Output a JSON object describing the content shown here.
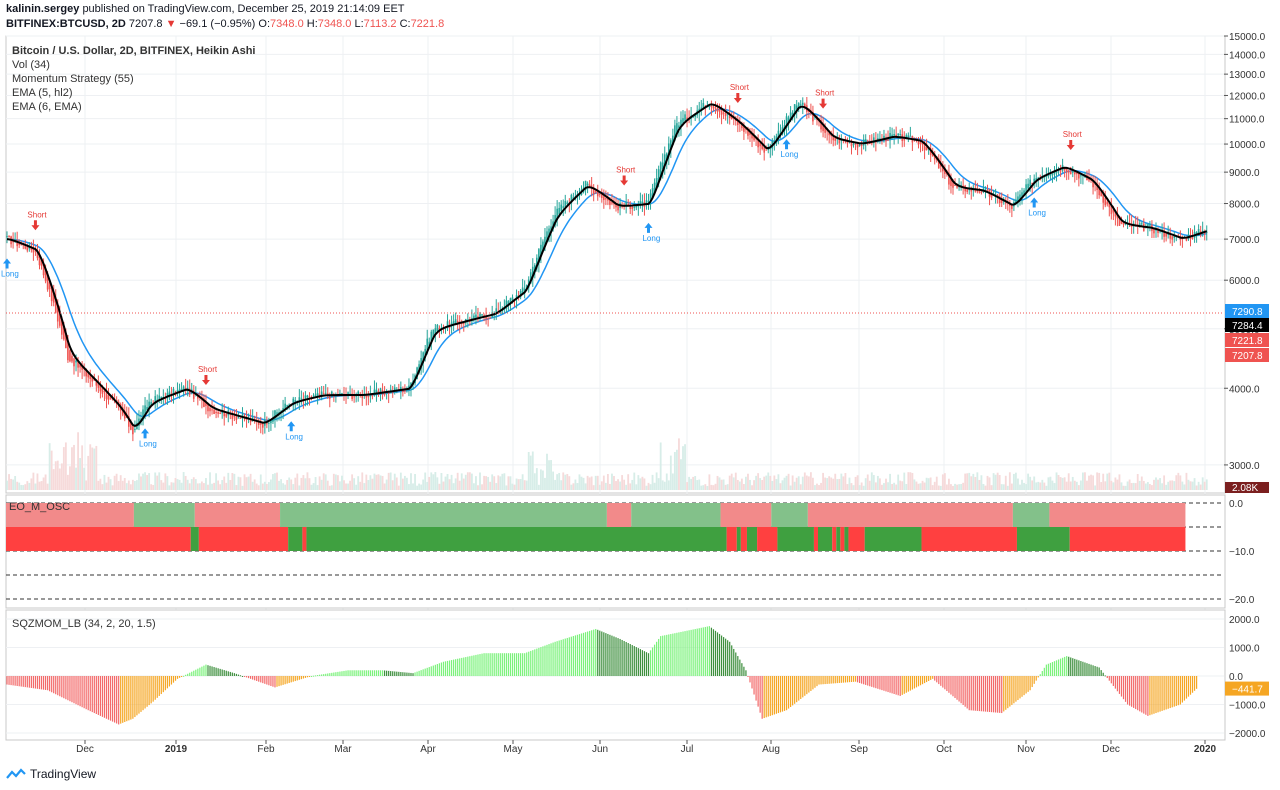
{
  "header": {
    "author": "kalinin.sergey",
    "published_text": "published on TradingView.com, December 25, 2019 21:14:09 EET",
    "symbol": "BITFINEX:BTCUSD, 2D",
    "last": "7207.8",
    "change": "−69.1 (−0.95%)",
    "o_label": "O:",
    "o_value": "7348.0",
    "h_label": "H:",
    "h_value": "7348.0",
    "l_label": "L:",
    "l_value": "7113.2",
    "c_label": "C:",
    "c_value": "7221.8"
  },
  "legend": {
    "title": "Bitcoin / U.S. Dollar, 2D, BITFINEX, Heikin Ashi",
    "vol": "Vol (34)",
    "momentum": "Momentum Strategy (55)",
    "ema1": "EMA (5, hl2)",
    "ema2": "EMA (6, EMA)",
    "osc": "EO_M_OSC",
    "sqz": "SQZMOM_LB (34, 2, 20, 1.5)"
  },
  "footer": {
    "brand": "TradingView"
  },
  "colors": {
    "up": "#26a69a",
    "down": "#ef5350",
    "ema_fast": "#000000",
    "ema_slow": "#2196f3",
    "long": "#2196f3",
    "short": "#e53935"
  },
  "chart_data": [
    {
      "type": "candlestick",
      "title": "Bitcoin / U.S. Dollar, 2D, BITFINEX, Heikin Ashi",
      "x_ticks": [
        "Dec",
        "2019",
        "Feb",
        "Mar",
        "Apr",
        "May",
        "Jun",
        "Jul",
        "Aug",
        "Sep",
        "Oct",
        "Nov",
        "Dec",
        "2020"
      ],
      "y_ticks": [
        3000,
        4000,
        5000,
        6000,
        7000,
        8000,
        9000,
        10000,
        11000,
        12000,
        13000,
        14000,
        15000
      ],
      "y_tick_labels": [
        "3000.0",
        "4000.0",
        "5000.0",
        "6000.0",
        "7000.0",
        "8000.0",
        "9000.0",
        "10000.0",
        "11000.0",
        "12000.0",
        "13000.0",
        "14000.0",
        "15000.0"
      ],
      "y_scale": "log",
      "price_labels": [
        {
          "text": "7290.8",
          "value": 7290.8,
          "color": "#2196f3"
        },
        {
          "text": "7284.4",
          "value": 7284.4,
          "color": "#000000"
        },
        {
          "text": "7221.8",
          "value": 7221.8,
          "color": "#ef5350"
        },
        {
          "text": "7207.8",
          "value": 7207.8,
          "color": "#ef5350"
        }
      ],
      "volume_label": "2.08K",
      "key_points": [
        {
          "x": 0,
          "y": 7000
        },
        {
          "x": 14,
          "y": 6700
        },
        {
          "x": 30,
          "y": 4500
        },
        {
          "x": 55,
          "y": 3700
        },
        {
          "x": 62,
          "y": 3400
        },
        {
          "x": 70,
          "y": 3800
        },
        {
          "x": 88,
          "y": 4000
        },
        {
          "x": 100,
          "y": 3700
        },
        {
          "x": 126,
          "y": 3500
        },
        {
          "x": 140,
          "y": 3800
        },
        {
          "x": 155,
          "y": 3900
        },
        {
          "x": 175,
          "y": 3900
        },
        {
          "x": 198,
          "y": 4000
        },
        {
          "x": 210,
          "y": 5000
        },
        {
          "x": 240,
          "y": 5300
        },
        {
          "x": 255,
          "y": 5800
        },
        {
          "x": 270,
          "y": 7700
        },
        {
          "x": 285,
          "y": 8600
        },
        {
          "x": 300,
          "y": 7900
        },
        {
          "x": 316,
          "y": 8000
        },
        {
          "x": 330,
          "y": 10800
        },
        {
          "x": 346,
          "y": 11700
        },
        {
          "x": 360,
          "y": 10800
        },
        {
          "x": 374,
          "y": 9700
        },
        {
          "x": 390,
          "y": 11700
        },
        {
          "x": 406,
          "y": 10200
        },
        {
          "x": 420,
          "y": 10000
        },
        {
          "x": 436,
          "y": 10300
        },
        {
          "x": 450,
          "y": 10100
        },
        {
          "x": 466,
          "y": 8500
        },
        {
          "x": 480,
          "y": 8400
        },
        {
          "x": 495,
          "y": 7900
        },
        {
          "x": 506,
          "y": 8800
        },
        {
          "x": 520,
          "y": 9200
        },
        {
          "x": 534,
          "y": 8700
        },
        {
          "x": 548,
          "y": 7400
        },
        {
          "x": 563,
          "y": 7300
        },
        {
          "x": 578,
          "y": 7000
        },
        {
          "x": 591,
          "y": 7250
        }
      ],
      "signals": [
        {
          "label": "Long",
          "type": "long",
          "x": 0
        },
        {
          "label": "Short",
          "type": "short",
          "x": 14
        },
        {
          "label": "Long",
          "type": "long",
          "x": 68
        },
        {
          "label": "Short",
          "type": "short",
          "x": 98
        },
        {
          "label": "Long",
          "type": "long",
          "x": 140
        },
        {
          "label": "Short",
          "type": "short",
          "x": 304
        },
        {
          "label": "Long",
          "type": "long",
          "x": 316
        },
        {
          "label": "Short",
          "type": "short",
          "x": 360
        },
        {
          "label": "Long",
          "type": "long",
          "x": 384
        },
        {
          "label": "Short",
          "type": "short",
          "x": 402
        },
        {
          "label": "Long",
          "type": "long",
          "x": 506
        },
        {
          "label": "Short",
          "type": "short",
          "x": 524
        }
      ]
    },
    {
      "type": "bar",
      "title": "EO_M_OSC",
      "y_ticks": [
        0,
        -5,
        -10,
        -15,
        -20
      ],
      "y_tick_labels": [
        "0.0",
        "",
        "−10.0",
        "",
        "−20.0"
      ],
      "upper_segments": [
        {
          "from": 0,
          "to": 63,
          "color": "#f28a8a"
        },
        {
          "from": 63,
          "to": 93,
          "color": "#83c18a"
        },
        {
          "from": 93,
          "to": 135,
          "color": "#f28a8a"
        },
        {
          "from": 135,
          "to": 296,
          "color": "#83c18a"
        },
        {
          "from": 296,
          "to": 308,
          "color": "#f28a8a"
        },
        {
          "from": 308,
          "to": 352,
          "color": "#83c18a"
        },
        {
          "from": 352,
          "to": 377,
          "color": "#f28a8a"
        },
        {
          "from": 377,
          "to": 395,
          "color": "#83c18a"
        },
        {
          "from": 395,
          "to": 496,
          "color": "#f28a8a"
        },
        {
          "from": 496,
          "to": 514,
          "color": "#83c18a"
        },
        {
          "from": 514,
          "to": 581,
          "color": "#f28a8a"
        }
      ],
      "lower_segments": [
        {
          "from": 0,
          "to": 91,
          "color": "#ff4040"
        },
        {
          "from": 91,
          "to": 95,
          "color": "#3fa040"
        },
        {
          "from": 95,
          "to": 139,
          "color": "#ff4040"
        },
        {
          "from": 139,
          "to": 146,
          "color": "#3fa040"
        },
        {
          "from": 146,
          "to": 148,
          "color": "#ff4040"
        },
        {
          "from": 148,
          "to": 355,
          "color": "#3fa040"
        },
        {
          "from": 355,
          "to": 360,
          "color": "#ff4040"
        },
        {
          "from": 360,
          "to": 362,
          "color": "#3fa040"
        },
        {
          "from": 362,
          "to": 365,
          "color": "#ff4040"
        },
        {
          "from": 365,
          "to": 370,
          "color": "#3fa040"
        },
        {
          "from": 370,
          "to": 380,
          "color": "#ff4040"
        },
        {
          "from": 380,
          "to": 398,
          "color": "#3fa040"
        },
        {
          "from": 398,
          "to": 400,
          "color": "#ff4040"
        },
        {
          "from": 400,
          "to": 407,
          "color": "#3fa040"
        },
        {
          "from": 407,
          "to": 409,
          "color": "#ff4040"
        },
        {
          "from": 409,
          "to": 411,
          "color": "#3fa040"
        },
        {
          "from": 411,
          "to": 413,
          "color": "#ff4040"
        },
        {
          "from": 413,
          "to": 415,
          "color": "#3fa040"
        },
        {
          "from": 415,
          "to": 423,
          "color": "#ff4040"
        },
        {
          "from": 423,
          "to": 451,
          "color": "#3fa040"
        },
        {
          "from": 451,
          "to": 498,
          "color": "#ff4040"
        },
        {
          "from": 498,
          "to": 524,
          "color": "#3fa040"
        },
        {
          "from": 524,
          "to": 581,
          "color": "#ff4040"
        }
      ]
    },
    {
      "type": "bar",
      "title": "SQZMOM_LB (34, 2, 20, 1.5)",
      "y_ticks": [
        2000,
        1000,
        0,
        -1000,
        -2000
      ],
      "y_tick_labels": [
        "2000.0",
        "1000.0",
        "0.0",
        "−1000.0",
        "−2000.0"
      ],
      "last_value_label": "−441.7",
      "key_points": [
        {
          "x": 0,
          "y": -300
        },
        {
          "x": 20,
          "y": -500
        },
        {
          "x": 40,
          "y": -1200
        },
        {
          "x": 55,
          "y": -1700
        },
        {
          "x": 62,
          "y": -1500
        },
        {
          "x": 72,
          "y": -900
        },
        {
          "x": 84,
          "y": -100
        },
        {
          "x": 98,
          "y": 400
        },
        {
          "x": 112,
          "y": 100
        },
        {
          "x": 132,
          "y": -400
        },
        {
          "x": 150,
          "y": 0
        },
        {
          "x": 168,
          "y": 200
        },
        {
          "x": 185,
          "y": 200
        },
        {
          "x": 200,
          "y": 100
        },
        {
          "x": 215,
          "y": 500
        },
        {
          "x": 235,
          "y": 800
        },
        {
          "x": 255,
          "y": 800
        },
        {
          "x": 270,
          "y": 1200
        },
        {
          "x": 290,
          "y": 1650
        },
        {
          "x": 302,
          "y": 1300
        },
        {
          "x": 316,
          "y": 800
        },
        {
          "x": 322,
          "y": 1400
        },
        {
          "x": 346,
          "y": 1750
        },
        {
          "x": 356,
          "y": 1200
        },
        {
          "x": 364,
          "y": 200
        },
        {
          "x": 372,
          "y": -1500
        },
        {
          "x": 384,
          "y": -1200
        },
        {
          "x": 400,
          "y": -300
        },
        {
          "x": 418,
          "y": -200
        },
        {
          "x": 440,
          "y": -700
        },
        {
          "x": 456,
          "y": -100
        },
        {
          "x": 474,
          "y": -1200
        },
        {
          "x": 490,
          "y": -1300
        },
        {
          "x": 504,
          "y": -500
        },
        {
          "x": 512,
          "y": 400
        },
        {
          "x": 522,
          "y": 700
        },
        {
          "x": 538,
          "y": 300
        },
        {
          "x": 552,
          "y": -1000
        },
        {
          "x": 562,
          "y": -1400
        },
        {
          "x": 578,
          "y": -1000
        },
        {
          "x": 586,
          "y": -450
        }
      ]
    }
  ]
}
